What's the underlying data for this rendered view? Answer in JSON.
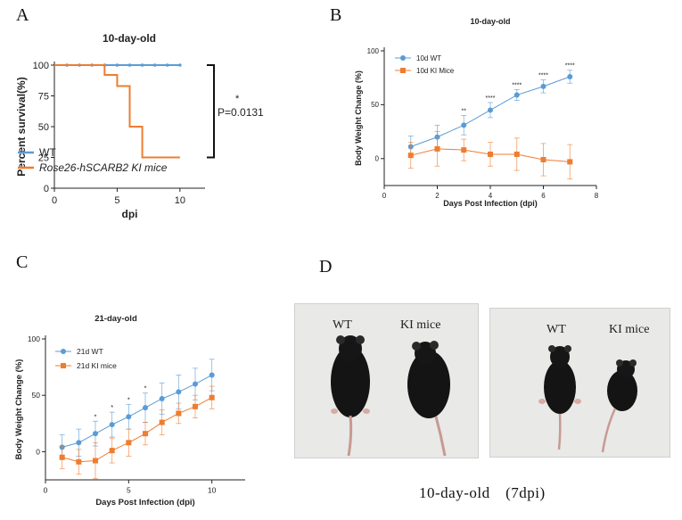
{
  "panels": {
    "a": "A",
    "b": "B",
    "c": "C",
    "d": "D"
  },
  "colors": {
    "wt": "#5b9bd5",
    "ki": "#ed7d31",
    "axis": "#222222"
  },
  "chart_data": [
    {
      "id": "A",
      "type": "line",
      "step": true,
      "title": "10-day-old",
      "xlabel": "dpi",
      "ylabel": "Percent survival(%)",
      "xlim": [
        0,
        12
      ],
      "ylim": [
        0,
        100
      ],
      "xticks": [
        0,
        5,
        10
      ],
      "yticks": [
        0,
        25,
        50,
        75,
        100
      ],
      "legend_position": "bottom-left",
      "series": [
        {
          "name": "WT",
          "x": [
            0,
            10
          ],
          "y": [
            100,
            100
          ],
          "censor_x": [
            1,
            2,
            3,
            4,
            5,
            6,
            7,
            8,
            9,
            10
          ]
        },
        {
          "name": "Rose26-hSCARB2 KI mice",
          "x": [
            0,
            4,
            5,
            6,
            7,
            10
          ],
          "y": [
            100,
            92,
            83,
            50,
            25,
            25
          ]
        }
      ],
      "annotation": {
        "star": "*",
        "text": "P=0.0131"
      }
    },
    {
      "id": "B",
      "type": "line",
      "title": "10-day-old",
      "xlabel": "Days Post Infection (dpi)",
      "ylabel": "Body Weight Change (%)",
      "xlim": [
        0,
        8
      ],
      "ylim": [
        -25,
        100
      ],
      "xticks": [
        0,
        2,
        4,
        6,
        8
      ],
      "yticks": [
        0,
        50,
        100
      ],
      "legend_position": "top-left",
      "series": [
        {
          "name": "10d WT",
          "x": [
            1,
            2,
            3,
            4,
            5,
            6,
            7
          ],
          "y": [
            11,
            20,
            31,
            45,
            59,
            67,
            76
          ],
          "err": [
            10,
            11,
            9,
            7,
            5,
            6,
            6
          ]
        },
        {
          "name": "10d KI Mice",
          "x": [
            1,
            2,
            3,
            4,
            5,
            6,
            7
          ],
          "y": [
            3,
            9,
            8,
            4,
            4,
            -1,
            -3
          ],
          "err": [
            12,
            16,
            10,
            11,
            15,
            15,
            16
          ]
        }
      ],
      "significance": [
        {
          "x": 3,
          "label": "**"
        },
        {
          "x": 4,
          "label": "****"
        },
        {
          "x": 5,
          "label": "****"
        },
        {
          "x": 6,
          "label": "****"
        },
        {
          "x": 7,
          "label": "****"
        }
      ]
    },
    {
      "id": "C",
      "type": "line",
      "title": "21-day-old",
      "xlabel": "Days Post Infection (dpi)",
      "ylabel": "Body Weight Change (%)",
      "xlim": [
        0,
        12
      ],
      "ylim": [
        -25,
        100
      ],
      "xticks": [
        0,
        5,
        10
      ],
      "yticks": [
        0,
        50,
        100
      ],
      "legend_position": "top-left",
      "series": [
        {
          "name": "21d WT",
          "x": [
            1,
            2,
            3,
            4,
            5,
            6,
            7,
            8,
            9,
            10
          ],
          "y": [
            4,
            8,
            16,
            24,
            31,
            39,
            47,
            53,
            60,
            68
          ],
          "err": [
            11,
            12,
            11,
            11,
            11,
            13,
            14,
            15,
            14,
            14
          ]
        },
        {
          "name": "21d KI mice",
          "x": [
            1,
            2,
            3,
            4,
            5,
            6,
            7,
            8,
            9,
            10
          ],
          "y": [
            -5,
            -9,
            -8,
            1,
            8,
            16,
            26,
            34,
            40,
            48
          ],
          "err": [
            10,
            11,
            16,
            11,
            12,
            10,
            11,
            9,
            10,
            10
          ]
        }
      ],
      "significance": [
        {
          "x": 3,
          "label": "*"
        },
        {
          "x": 4,
          "label": "*"
        },
        {
          "x": 5,
          "label": "*"
        },
        {
          "x": 6,
          "label": "*"
        }
      ]
    }
  ],
  "photos": {
    "left": {
      "label_wt": "WT",
      "label_ki": "KI mice"
    },
    "right": {
      "label_wt": "WT",
      "label_ki": "KI mice"
    },
    "caption": "10-day-old　(7dpi)"
  }
}
